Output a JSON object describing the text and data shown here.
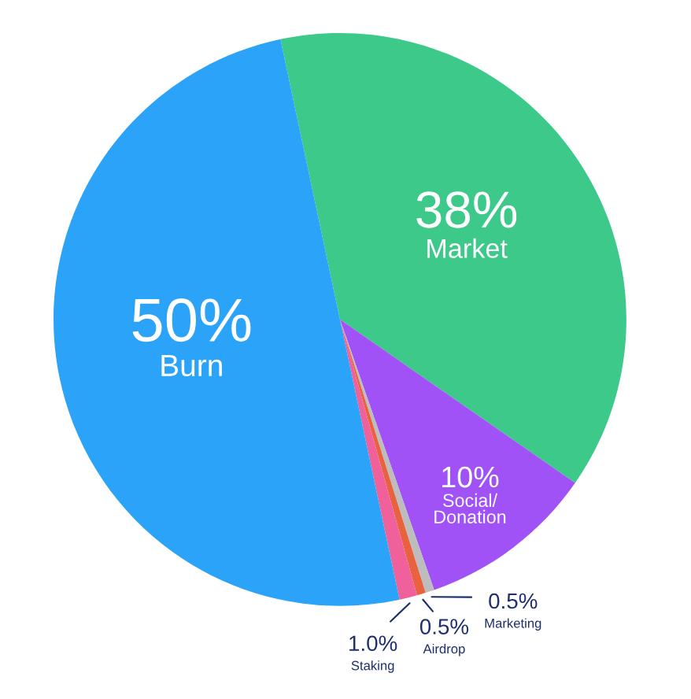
{
  "chart_data": {
    "type": "pie",
    "categories": [
      "Market",
      "Social/\nDonation",
      "Marketing",
      "Airdrop",
      "Staking",
      "Burn"
    ],
    "values": [
      38,
      10,
      0.5,
      0.5,
      1.0,
      50
    ],
    "colors": [
      "#3cc98a",
      "#a052f6",
      "#bdbdbd",
      "#e8623f",
      "#f0609a",
      "#2aa3f8"
    ],
    "value_labels": [
      "38%",
      "10%",
      "0.5%",
      "0.5%",
      "1.0%",
      "50%"
    ]
  }
}
